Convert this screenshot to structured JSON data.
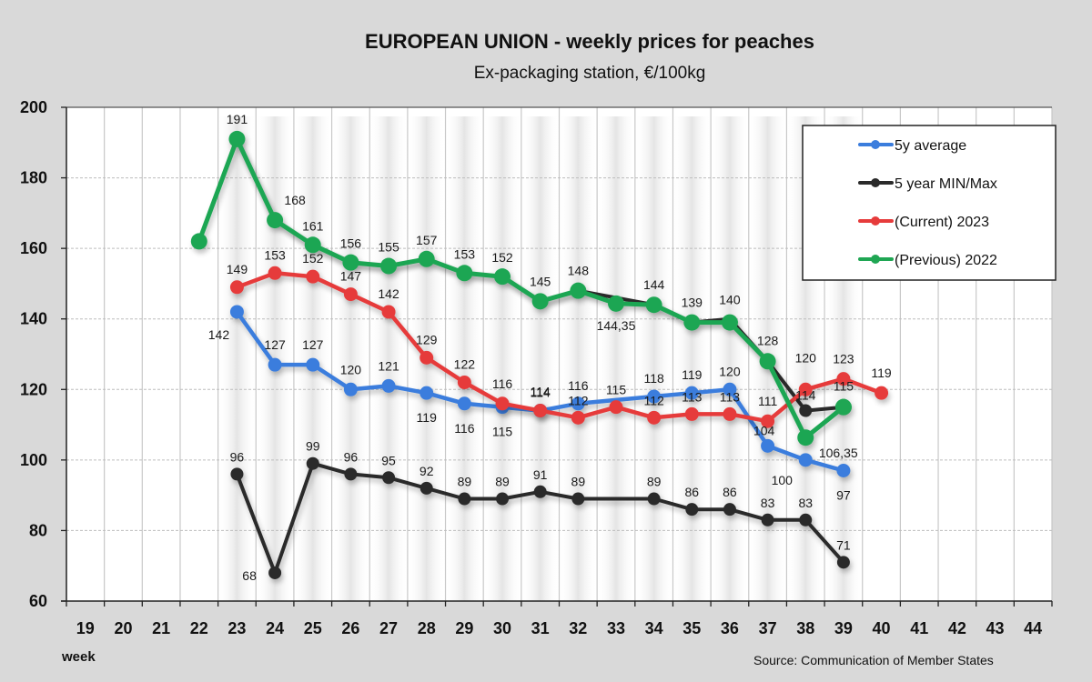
{
  "chart_data": {
    "type": "line",
    "title": "EUROPEAN UNION  -  weekly prices for peaches",
    "subtitle": "Ex-packaging station, €/100kg",
    "xlabel": "week",
    "ylabel": "",
    "source": "Source: Communication  of Member States",
    "ylim": [
      60,
      200
    ],
    "yticks": [
      "200",
      "180",
      "160",
      "140",
      "120",
      "100",
      "80",
      "60"
    ],
    "ytick_values": [
      200,
      180,
      160,
      140,
      120,
      100,
      80,
      60
    ],
    "categories": [
      "19",
      "20",
      "21",
      "22",
      "23",
      "24",
      "25",
      "26",
      "27",
      "28",
      "29",
      "30",
      "31",
      "32",
      "33",
      "34",
      "35",
      "36",
      "37",
      "38",
      "39",
      "40",
      "41",
      "42",
      "43",
      "44"
    ],
    "grid": true,
    "legend_position": "top-right",
    "series": [
      {
        "name": "5y average",
        "color": "#3b7ddd",
        "values": [
          null,
          null,
          null,
          null,
          142,
          127,
          127,
          120,
          121,
          119,
          116,
          115,
          114,
          116,
          null,
          118,
          119,
          120,
          104,
          100,
          97,
          null,
          null,
          null,
          null,
          null
        ],
        "labels": [
          null,
          null,
          null,
          null,
          "142",
          "127",
          "127",
          "120",
          "121",
          "119",
          "116",
          "115",
          "114",
          "116",
          null,
          "118",
          "119",
          "120",
          "104",
          "100",
          "97",
          null,
          null,
          null,
          null,
          null
        ]
      },
      {
        "name": "5 year MIN/Max",
        "color": "#2a2a2a",
        "values": [
          null,
          null,
          null,
          null,
          96,
          68,
          99,
          96,
          95,
          92,
          89,
          89,
          91,
          89,
          null,
          89,
          86,
          86,
          83,
          83,
          71,
          null,
          null,
          null,
          null,
          null
        ],
        "labels": [
          null,
          null,
          null,
          null,
          "96",
          "68",
          "99",
          "96",
          "95",
          "92",
          "89",
          "89",
          "91",
          "89",
          null,
          "89",
          "86",
          "86",
          "83",
          "83",
          "71",
          null,
          null,
          null,
          null,
          null
        ],
        "max_values": [
          null,
          null,
          null,
          null,
          191,
          168,
          161,
          156,
          155,
          157,
          153,
          152,
          145,
          148,
          null,
          144,
          139,
          140,
          128,
          114,
          115,
          null,
          null,
          null,
          null,
          null
        ],
        "max_labels": [
          null,
          null,
          null,
          null,
          null,
          null,
          null,
          null,
          null,
          null,
          null,
          null,
          null,
          null,
          null,
          null,
          null,
          "140",
          null,
          "114",
          null,
          null,
          null,
          null,
          null,
          null
        ]
      },
      {
        "name": " (Current) 2023",
        "color": "#e63b3b",
        "values": [
          null,
          null,
          null,
          null,
          149,
          153,
          152,
          147,
          142,
          129,
          122,
          116,
          114,
          112,
          115,
          112,
          113,
          113,
          111,
          120,
          123,
          119,
          null,
          null,
          null,
          null
        ],
        "labels": [
          null,
          null,
          null,
          null,
          "149",
          "153",
          "152",
          "147",
          "142",
          "129",
          "122",
          "116",
          "114",
          "112",
          "115",
          "112",
          "113",
          "113",
          "111",
          "120",
          "123",
          "119",
          null,
          null,
          null,
          null
        ]
      },
      {
        "name": "(Previous) 2022",
        "color": "#1fa653",
        "values": [
          null,
          null,
          null,
          162,
          191,
          168,
          161,
          156,
          155,
          157,
          153,
          152,
          145,
          148,
          144.35,
          144,
          139,
          139,
          128,
          106.35,
          115,
          null,
          null,
          null,
          null,
          null
        ],
        "labels": [
          null,
          null,
          null,
          null,
          "191",
          "168",
          "161",
          "156",
          "155",
          "157",
          "153",
          "152",
          "145",
          "148",
          "144,35",
          "144",
          "139",
          null,
          "128",
          "106,35",
          "115",
          null,
          null,
          null,
          null,
          null
        ]
      }
    ]
  }
}
